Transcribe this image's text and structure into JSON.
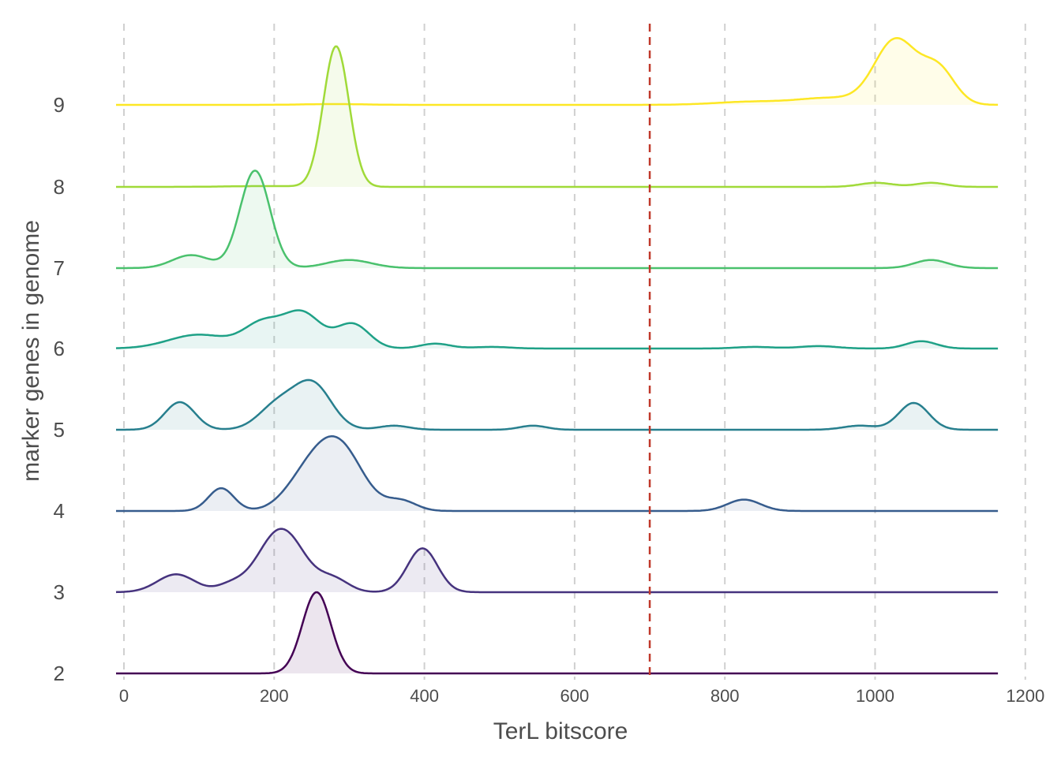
{
  "chart_data": {
    "type": "ridgeline",
    "title": "",
    "xlabel": "TerL bitscore",
    "ylabel": "marker genes in genome",
    "xlim": [
      -10,
      1175
    ],
    "x_ticks": [
      0,
      200,
      400,
      600,
      800,
      1000,
      1200
    ],
    "y_categories": [
      2,
      3,
      4,
      5,
      6,
      7,
      8,
      9
    ],
    "grid": "vertical dashed",
    "threshold_line": {
      "x": 700,
      "color": "#c0392b",
      "style": "dashed"
    },
    "colors": {
      "2": "#440154",
      "3": "#46337e",
      "4": "#365c8d",
      "5": "#277f8e",
      "6": "#1fa187",
      "7": "#4ac16d",
      "8": "#a0da39",
      "9": "#fde725"
    },
    "series": [
      {
        "name": "2",
        "x_range": [
          0,
          1175
        ],
        "peak": 1.0,
        "components": [
          {
            "mu": 267,
            "sd": 19,
            "w": 1.0
          }
        ]
      },
      {
        "name": "3",
        "x_range": [
          0,
          1175
        ],
        "peak": 0.78,
        "components": [
          {
            "mu": 80,
            "sd": 25,
            "w": 0.22
          },
          {
            "mu": 152,
            "sd": 18,
            "w": 0.08
          },
          {
            "mu": 220,
            "sd": 30,
            "w": 0.78
          },
          {
            "mu": 290,
            "sd": 20,
            "w": 0.15
          },
          {
            "mu": 408,
            "sd": 20,
            "w": 0.54
          }
        ]
      },
      {
        "name": "4",
        "x_range": [
          0,
          1175
        ],
        "peak": 0.92,
        "components": [
          {
            "mu": 140,
            "sd": 17,
            "w": 0.28
          },
          {
            "mu": 250,
            "sd": 28,
            "w": 0.3
          },
          {
            "mu": 295,
            "sd": 32,
            "w": 0.82
          },
          {
            "mu": 380,
            "sd": 20,
            "w": 0.12
          },
          {
            "mu": 836,
            "sd": 22,
            "w": 0.14
          }
        ]
      },
      {
        "name": "5",
        "x_range": [
          0,
          1175
        ],
        "peak": 0.65,
        "components": [
          {
            "mu": 85,
            "sd": 20,
            "w": 0.34
          },
          {
            "mu": 215,
            "sd": 25,
            "w": 0.3
          },
          {
            "mu": 262,
            "sd": 25,
            "w": 0.55
          },
          {
            "mu": 370,
            "sd": 20,
            "w": 0.05
          },
          {
            "mu": 555,
            "sd": 18,
            "w": 0.05
          },
          {
            "mu": 990,
            "sd": 22,
            "w": 0.05
          },
          {
            "mu": 1062,
            "sd": 20,
            "w": 0.33
          }
        ]
      },
      {
        "name": "6",
        "x_range": [
          0,
          1175
        ],
        "peak": 0.55,
        "components": [
          {
            "mu": 110,
            "sd": 40,
            "w": 0.17
          },
          {
            "mu": 195,
            "sd": 25,
            "w": 0.3
          },
          {
            "mu": 248,
            "sd": 25,
            "w": 0.43
          },
          {
            "mu": 315,
            "sd": 22,
            "w": 0.3
          },
          {
            "mu": 425,
            "sd": 20,
            "w": 0.06
          },
          {
            "mu": 500,
            "sd": 25,
            "w": 0.02
          },
          {
            "mu": 850,
            "sd": 25,
            "w": 0.02
          },
          {
            "mu": 935,
            "sd": 25,
            "w": 0.03
          },
          {
            "mu": 1072,
            "sd": 20,
            "w": 0.09
          }
        ]
      },
      {
        "name": "7",
        "x_range": [
          0,
          1175
        ],
        "peak": 1.25,
        "components": [
          {
            "mu": 100,
            "sd": 25,
            "w": 0.16
          },
          {
            "mu": 185,
            "sd": 20,
            "w": 1.2
          },
          {
            "mu": 310,
            "sd": 30,
            "w": 0.1
          },
          {
            "mu": 1085,
            "sd": 22,
            "w": 0.1
          }
        ]
      },
      {
        "name": "8",
        "x_range": [
          0,
          1175
        ],
        "peak": 1.75,
        "components": [
          {
            "mu": 200,
            "sd": 50,
            "w": 0.01
          },
          {
            "mu": 293,
            "sd": 17,
            "w": 1.73
          },
          {
            "mu": 1012,
            "sd": 22,
            "w": 0.05
          },
          {
            "mu": 1085,
            "sd": 20,
            "w": 0.05
          }
        ]
      },
      {
        "name": "9",
        "x_range": [
          0,
          1175
        ],
        "peak": 0.9,
        "components": [
          {
            "mu": 290,
            "sd": 40,
            "w": 0.01
          },
          {
            "mu": 850,
            "sd": 50,
            "w": 0.04
          },
          {
            "mu": 950,
            "sd": 40,
            "w": 0.08
          },
          {
            "mu": 1038,
            "sd": 28,
            "w": 0.8
          },
          {
            "mu": 1095,
            "sd": 22,
            "w": 0.42
          }
        ]
      }
    ]
  }
}
